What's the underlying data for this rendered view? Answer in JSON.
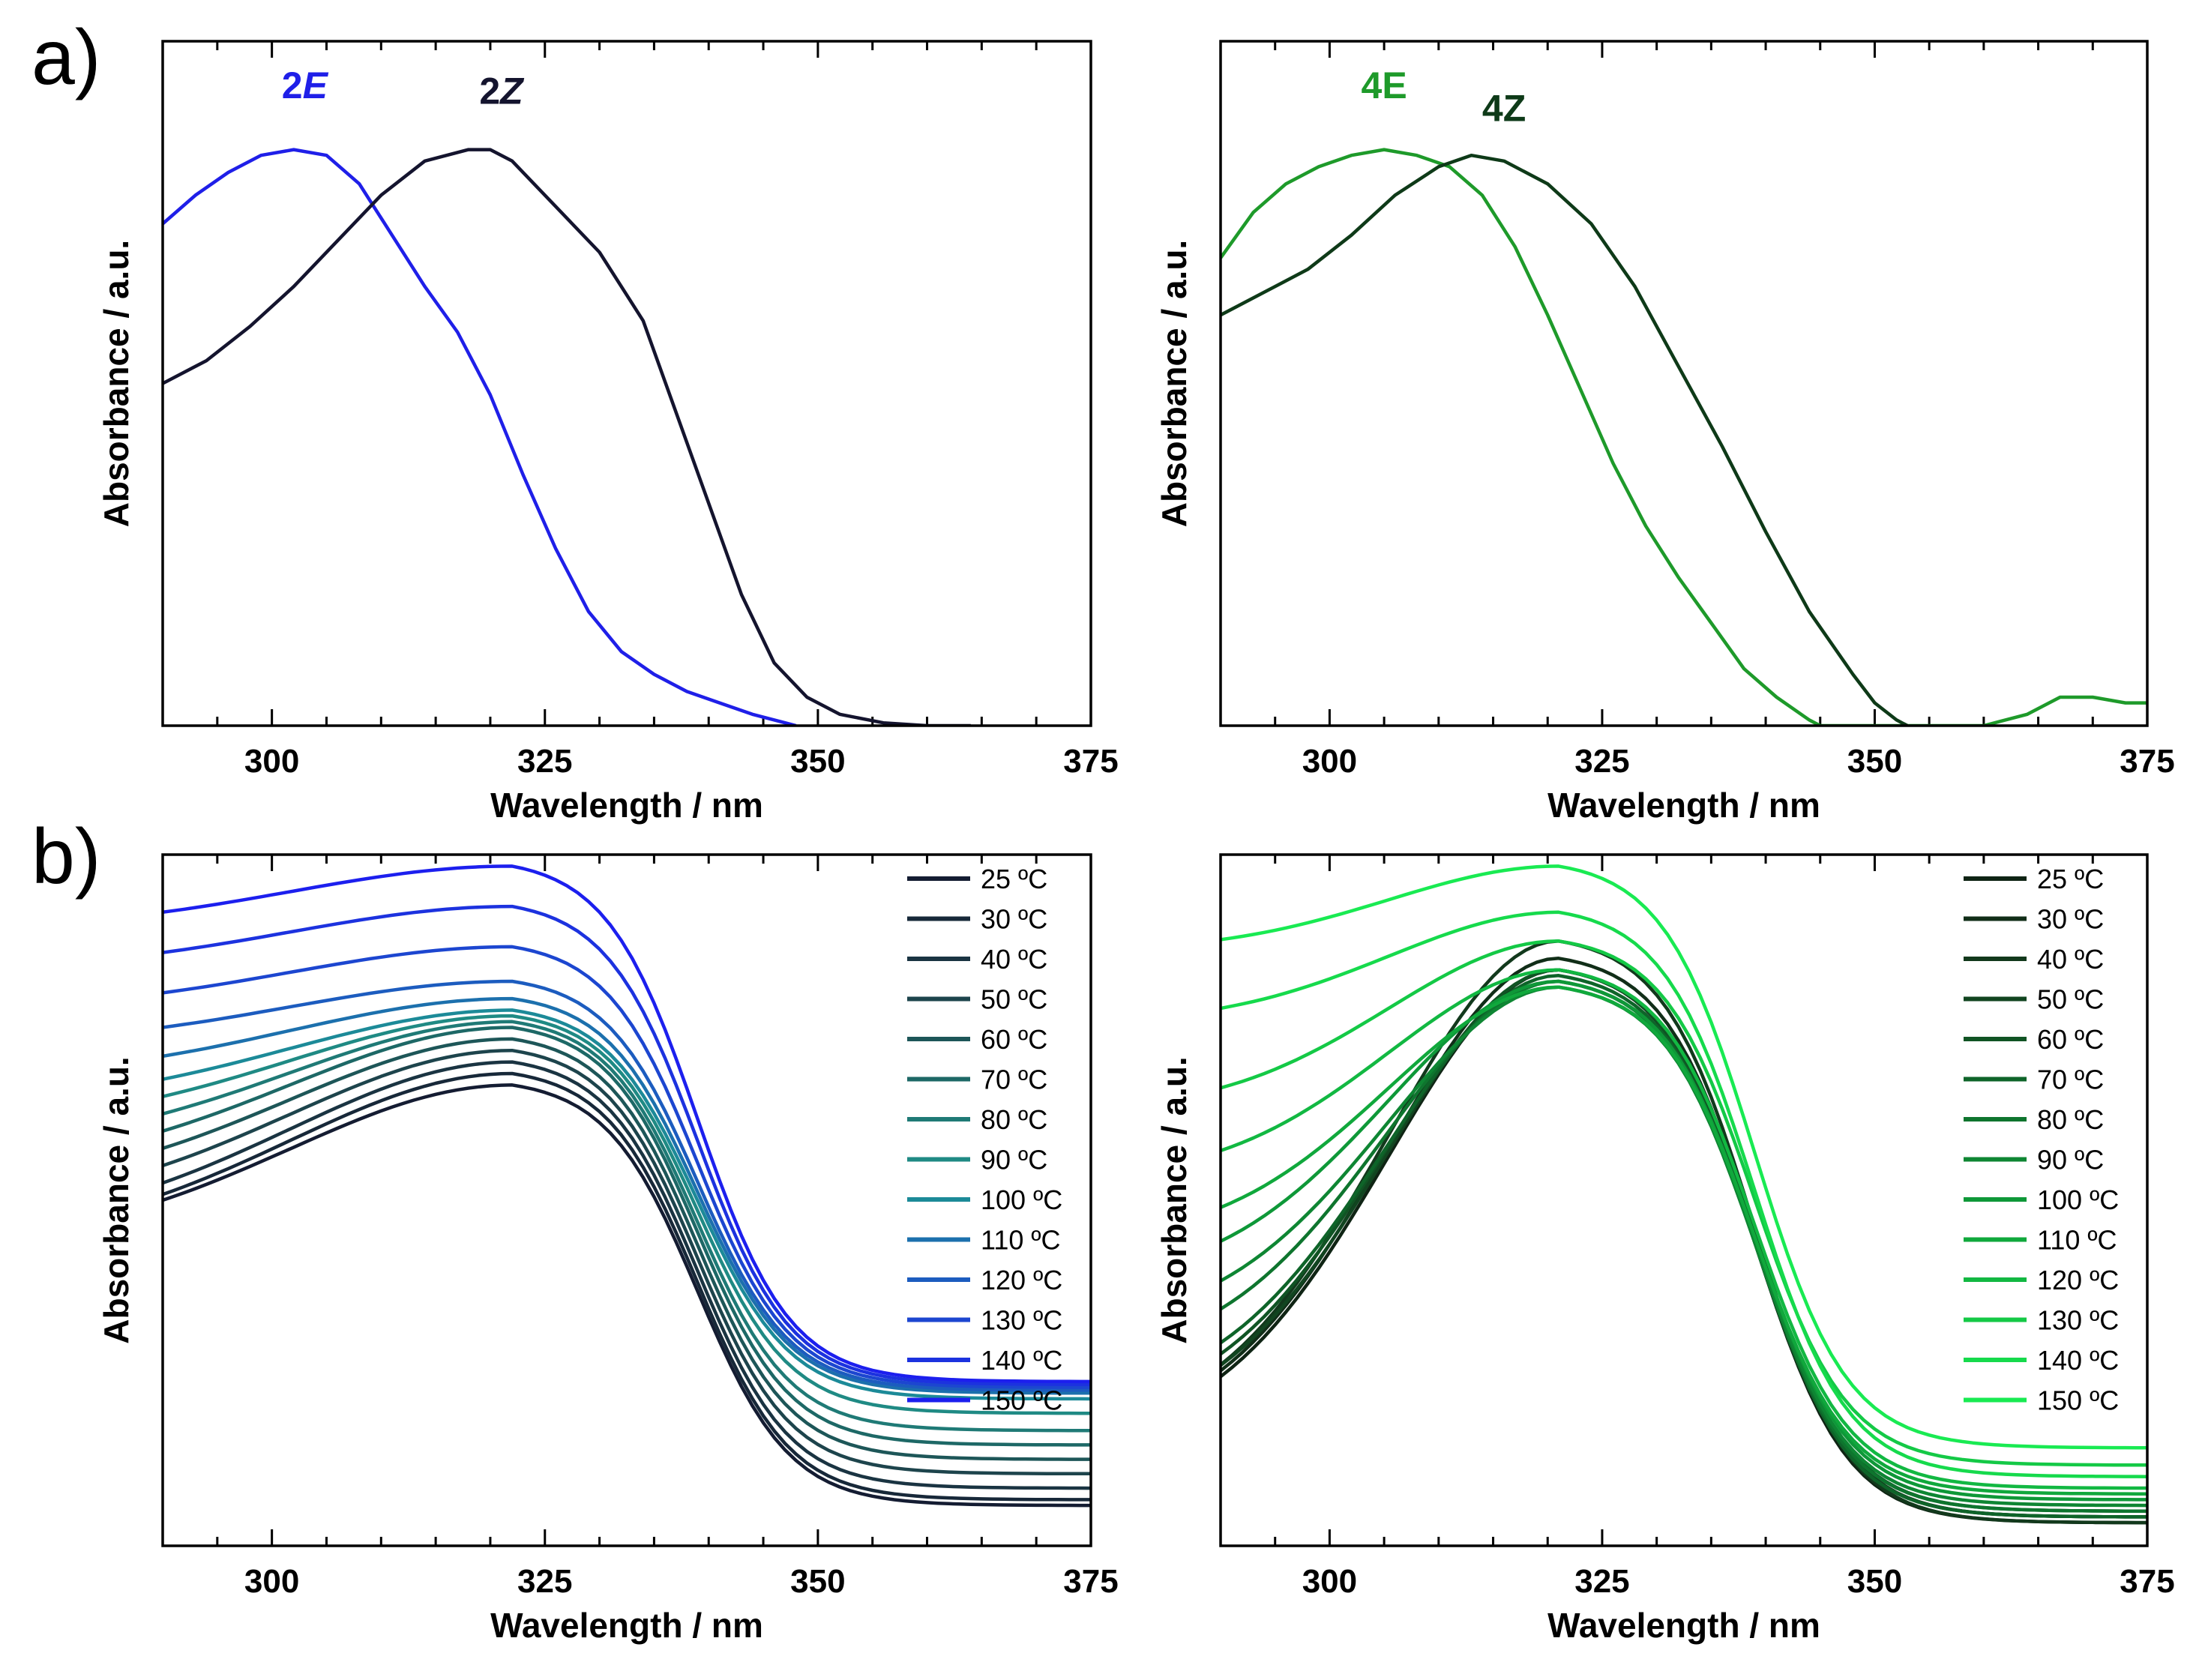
{
  "figure": {
    "panel_labels": [
      "a)",
      "b)"
    ]
  },
  "chart_data": [
    {
      "type": "line",
      "panel": "a-left",
      "xlabel": "Wavelength / nm",
      "ylabel": "Absorbance / a.u.",
      "xlim": [
        290,
        375
      ],
      "ylim": [
        0,
        1.2
      ],
      "xticks": [
        300,
        325,
        350,
        375
      ],
      "annotations": [
        {
          "text": "2E",
          "italic_suffix": true,
          "x": 303,
          "y": 1.1,
          "color": "#1f1fe8"
        },
        {
          "text": "2Z",
          "italic_suffix": true,
          "x": 321,
          "y": 1.09,
          "color": "#14142e"
        }
      ],
      "series": [
        {
          "name": "2E",
          "color": "#1f1fe8",
          "x": [
            290,
            293,
            296,
            299,
            302,
            305,
            308,
            311,
            314,
            317,
            320,
            323,
            326,
            329,
            332,
            335,
            338,
            341,
            344,
            347,
            348
          ],
          "y": [
            0.88,
            0.93,
            0.97,
            1.0,
            1.01,
            1.0,
            0.95,
            0.86,
            0.77,
            0.69,
            0.58,
            0.44,
            0.31,
            0.2,
            0.13,
            0.09,
            0.06,
            0.04,
            0.02,
            0.005,
            0.0
          ]
        },
        {
          "name": "2Z",
          "color": "#14142e",
          "x": [
            290,
            294,
            298,
            302,
            306,
            310,
            314,
            318,
            320,
            322,
            326,
            330,
            334,
            337,
            340,
            343,
            346,
            349,
            352,
            356,
            360,
            364
          ],
          "y": [
            0.6,
            0.64,
            0.7,
            0.77,
            0.85,
            0.93,
            0.99,
            1.01,
            1.01,
            0.99,
            0.91,
            0.83,
            0.71,
            0.55,
            0.39,
            0.23,
            0.11,
            0.05,
            0.02,
            0.005,
            0.0,
            0.0
          ]
        }
      ]
    },
    {
      "type": "line",
      "panel": "a-right",
      "xlabel": "Wavelength / nm",
      "ylabel": "Absorbance / a.u.",
      "xlim": [
        290,
        375
      ],
      "ylim": [
        0,
        1.2
      ],
      "xticks": [
        300,
        325,
        350,
        375
      ],
      "annotations": [
        {
          "text": "4E",
          "x": 305,
          "y": 1.1,
          "color": "#1e9a2a"
        },
        {
          "text": "4Z",
          "x": 316,
          "y": 1.06,
          "color": "#0e3a18"
        }
      ],
      "series": [
        {
          "name": "4E",
          "color": "#1e9a2a",
          "x": [
            290,
            293,
            296,
            299,
            302,
            305,
            308,
            311,
            314,
            317,
            320,
            323,
            326,
            329,
            332,
            335,
            338,
            341,
            344,
            345,
            360,
            364,
            367,
            370,
            373,
            375
          ],
          "y": [
            0.82,
            0.9,
            0.95,
            0.98,
            1.0,
            1.01,
            1.0,
            0.98,
            0.93,
            0.84,
            0.72,
            0.59,
            0.46,
            0.35,
            0.26,
            0.18,
            0.1,
            0.05,
            0.01,
            0.0,
            0.0,
            0.02,
            0.05,
            0.05,
            0.04,
            0.04
          ]
        },
        {
          "name": "4Z",
          "color": "#0e3a18",
          "x": [
            290,
            294,
            298,
            302,
            306,
            310,
            313,
            316,
            320,
            324,
            328,
            332,
            336,
            340,
            344,
            348,
            350,
            352,
            353
          ],
          "y": [
            0.72,
            0.76,
            0.8,
            0.86,
            0.93,
            0.98,
            1.0,
            0.99,
            0.95,
            0.88,
            0.77,
            0.63,
            0.49,
            0.34,
            0.2,
            0.09,
            0.04,
            0.01,
            0.0
          ]
        }
      ]
    },
    {
      "type": "line",
      "panel": "b-left",
      "xlabel": "Wavelength / nm",
      "ylabel": "Absorbance / a.u.",
      "xlim": [
        290,
        375
      ],
      "ylim": [
        0,
        1.2
      ],
      "xticks": [
        300,
        325,
        350,
        375
      ],
      "legend": "top-right",
      "series": [
        {
          "name": "25 ºC",
          "color": "#141c32",
          "peak": 0.8,
          "base": 0.07,
          "left": 0.6
        },
        {
          "name": "30 ºC",
          "color": "#172839",
          "peak": 0.82,
          "base": 0.08,
          "left": 0.61
        },
        {
          "name": "40 ºC",
          "color": "#1a3442",
          "peak": 0.84,
          "base": 0.1,
          "left": 0.63
        },
        {
          "name": "50 ºC",
          "color": "#1d444c",
          "peak": 0.86,
          "base": 0.125,
          "left": 0.66
        },
        {
          "name": "60 ºC",
          "color": "#1d5658",
          "peak": 0.88,
          "base": 0.15,
          "left": 0.69
        },
        {
          "name": "70 ºC",
          "color": "#1d6866",
          "peak": 0.9,
          "base": 0.175,
          "left": 0.72
        },
        {
          "name": "80 ºC",
          "color": "#1f7a76",
          "peak": 0.91,
          "base": 0.2,
          "left": 0.75
        },
        {
          "name": "90 ºC",
          "color": "#1f8a84",
          "peak": 0.92,
          "base": 0.23,
          "left": 0.78
        },
        {
          "name": "100 ºC",
          "color": "#1c8a98",
          "peak": 0.93,
          "base": 0.255,
          "left": 0.81
        },
        {
          "name": "110 ºC",
          "color": "#1c70ad",
          "peak": 0.95,
          "base": 0.265,
          "left": 0.85
        },
        {
          "name": "120 ºC",
          "color": "#1c5cbf",
          "peak": 0.98,
          "base": 0.27,
          "left": 0.9
        },
        {
          "name": "130 ºC",
          "color": "#1c46d0",
          "peak": 1.04,
          "base": 0.275,
          "left": 0.96
        },
        {
          "name": "140 ºC",
          "color": "#1c32df",
          "peak": 1.11,
          "base": 0.28,
          "left": 1.03
        },
        {
          "name": "150 ºC",
          "color": "#1c1fee",
          "peak": 1.18,
          "base": 0.285,
          "left": 1.1
        }
      ]
    },
    {
      "type": "line",
      "panel": "b-right",
      "xlabel": "Wavelength / nm",
      "ylabel": "Absorbance / a.u.",
      "xlim": [
        290,
        375
      ],
      "ylim": [
        0,
        1.2
      ],
      "xticks": [
        300,
        325,
        350,
        375
      ],
      "legend": "top-right",
      "series": [
        {
          "name": "25 ºC",
          "color": "#0f2414",
          "peak": 1.0,
          "base": 0.04,
          "left": 0.28
        },
        {
          "name": "30 ºC",
          "color": "#112e18",
          "peak": 1.02,
          "base": 0.05,
          "left": 0.29
        },
        {
          "name": "40 ºC",
          "color": "#12391c",
          "peak": 1.05,
          "base": 0.04,
          "left": 0.3
        },
        {
          "name": "50 ºC",
          "color": "#114520",
          "peak": 1.0,
          "base": 0.05,
          "left": 0.3
        },
        {
          "name": "60 ºC",
          "color": "#105424",
          "peak": 1.0,
          "base": 0.06,
          "left": 0.32
        },
        {
          "name": "70 ºC",
          "color": "#0e6429",
          "peak": 0.99,
          "base": 0.05,
          "left": 0.34
        },
        {
          "name": "80 ºC",
          "color": "#0e752e",
          "peak": 0.98,
          "base": 0.06,
          "left": 0.4
        },
        {
          "name": "90 ºC",
          "color": "#0e8633",
          "peak": 0.97,
          "base": 0.07,
          "left": 0.45
        },
        {
          "name": "100 ºC",
          "color": "#0e9838",
          "peak": 0.98,
          "base": 0.08,
          "left": 0.52
        },
        {
          "name": "110 ºC",
          "color": "#10a83c",
          "peak": 0.97,
          "base": 0.09,
          "left": 0.58
        },
        {
          "name": "120 ºC",
          "color": "#12b842",
          "peak": 1.0,
          "base": 0.1,
          "left": 0.68
        },
        {
          "name": "130 ºC",
          "color": "#14c946",
          "peak": 1.05,
          "base": 0.14,
          "left": 0.79
        },
        {
          "name": "140 ºC",
          "color": "#16da4c",
          "peak": 1.1,
          "base": 0.12,
          "left": 0.93
        },
        {
          "name": "150 ºC",
          "color": "#19ea52",
          "peak": 1.18,
          "base": 0.17,
          "left": 1.05
        }
      ]
    }
  ]
}
